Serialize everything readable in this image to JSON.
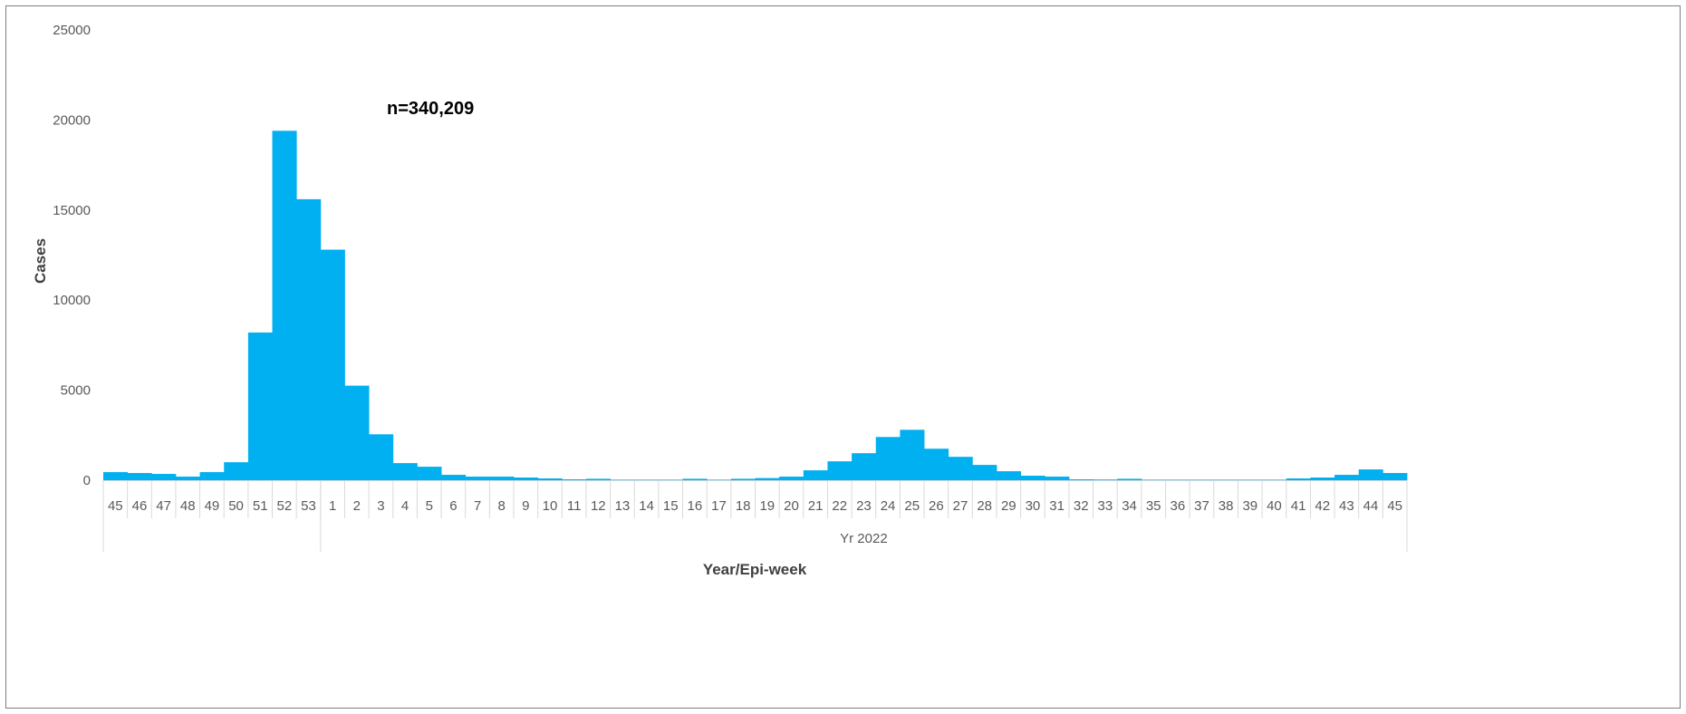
{
  "chart_data": {
    "type": "bar",
    "title": "",
    "annotation": "n=340,209",
    "ylabel": "Cases",
    "xlabel": "Year/Epi-week",
    "ylim": [
      0,
      25000
    ],
    "yticks": [
      "0",
      "5000",
      "10000",
      "15000",
      "20000",
      "25000"
    ],
    "grid": false,
    "color": "#00b0f0",
    "groups": [
      {
        "label": "",
        "count": 9
      },
      {
        "label": "Yr 2022",
        "count": 45
      }
    ],
    "categories": [
      "45",
      "46",
      "47",
      "48",
      "49",
      "50",
      "51",
      "52",
      "53",
      "1",
      "2",
      "3",
      "4",
      "5",
      "6",
      "7",
      "8",
      "9",
      "10",
      "11",
      "12",
      "13",
      "14",
      "15",
      "16",
      "17",
      "18",
      "19",
      "20",
      "21",
      "22",
      "23",
      "24",
      "25",
      "26",
      "27",
      "28",
      "29",
      "30",
      "31",
      "32",
      "33",
      "34",
      "35",
      "36",
      "37",
      "38",
      "39",
      "40",
      "41",
      "42",
      "43",
      "44",
      "45"
    ],
    "values": [
      450,
      400,
      350,
      200,
      450,
      1000,
      8200,
      19400,
      15600,
      12800,
      5250,
      2550,
      950,
      750,
      300,
      200,
      200,
      150,
      100,
      50,
      80,
      30,
      30,
      30,
      80,
      30,
      80,
      120,
      200,
      550,
      1050,
      1500,
      2400,
      2800,
      1750,
      1300,
      850,
      500,
      250,
      200,
      50,
      40,
      80,
      30,
      30,
      30,
      30,
      30,
      30,
      100,
      150,
      300,
      600,
      400
    ]
  }
}
